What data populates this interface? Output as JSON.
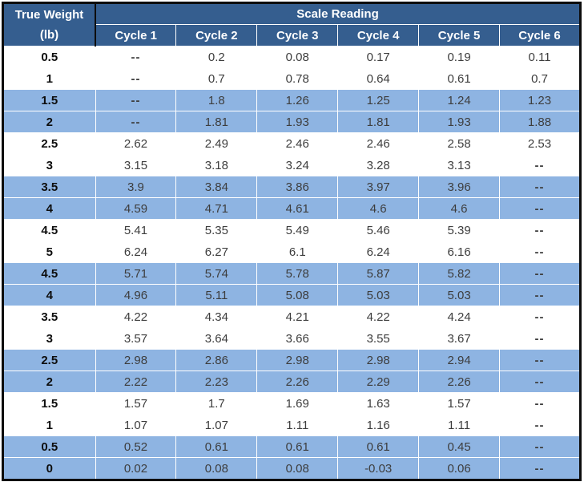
{
  "chart_data": {
    "type": "table",
    "corner_header": {
      "line1": "True Weight",
      "line2": "(lb)"
    },
    "group_header": "Scale Reading",
    "columns": [
      "Cycle 1",
      "Cycle 2",
      "Cycle 3",
      "Cycle 4",
      "Cycle 5",
      "Cycle 6"
    ],
    "missing_marker": "--",
    "rows": [
      {
        "weight": "0.5",
        "shaded": false,
        "values": [
          "--",
          "0.2",
          "0.08",
          "0.17",
          "0.19",
          "0.11"
        ]
      },
      {
        "weight": "1",
        "shaded": false,
        "values": [
          "--",
          "0.7",
          "0.78",
          "0.64",
          "0.61",
          "0.7"
        ]
      },
      {
        "weight": "1.5",
        "shaded": true,
        "values": [
          "--",
          "1.8",
          "1.26",
          "1.25",
          "1.24",
          "1.23"
        ]
      },
      {
        "weight": "2",
        "shaded": true,
        "values": [
          "--",
          "1.81",
          "1.93",
          "1.81",
          "1.93",
          "1.88"
        ]
      },
      {
        "weight": "2.5",
        "shaded": false,
        "values": [
          "2.62",
          "2.49",
          "2.46",
          "2.46",
          "2.58",
          "2.53"
        ]
      },
      {
        "weight": "3",
        "shaded": false,
        "values": [
          "3.15",
          "3.18",
          "3.24",
          "3.28",
          "3.13",
          "--"
        ]
      },
      {
        "weight": "3.5",
        "shaded": true,
        "values": [
          "3.9",
          "3.84",
          "3.86",
          "3.97",
          "3.96",
          "--"
        ]
      },
      {
        "weight": "4",
        "shaded": true,
        "values": [
          "4.59",
          "4.71",
          "4.61",
          "4.6",
          "4.6",
          "--"
        ]
      },
      {
        "weight": "4.5",
        "shaded": false,
        "values": [
          "5.41",
          "5.35",
          "5.49",
          "5.46",
          "5.39",
          "--"
        ]
      },
      {
        "weight": "5",
        "shaded": false,
        "values": [
          "6.24",
          "6.27",
          "6.1",
          "6.24",
          "6.16",
          "--"
        ]
      },
      {
        "weight": "4.5",
        "shaded": true,
        "values": [
          "5.71",
          "5.74",
          "5.78",
          "5.87",
          "5.82",
          "--"
        ]
      },
      {
        "weight": "4",
        "shaded": true,
        "values": [
          "4.96",
          "5.11",
          "5.08",
          "5.03",
          "5.03",
          "--"
        ]
      },
      {
        "weight": "3.5",
        "shaded": false,
        "values": [
          "4.22",
          "4.34",
          "4.21",
          "4.22",
          "4.24",
          "--"
        ]
      },
      {
        "weight": "3",
        "shaded": false,
        "values": [
          "3.57",
          "3.64",
          "3.66",
          "3.55",
          "3.67",
          "--"
        ]
      },
      {
        "weight": "2.5",
        "shaded": true,
        "values": [
          "2.98",
          "2.86",
          "2.98",
          "2.98",
          "2.94",
          "--"
        ]
      },
      {
        "weight": "2",
        "shaded": true,
        "values": [
          "2.22",
          "2.23",
          "2.26",
          "2.29",
          "2.26",
          "--"
        ]
      },
      {
        "weight": "1.5",
        "shaded": false,
        "values": [
          "1.57",
          "1.7",
          "1.69",
          "1.63",
          "1.57",
          "--"
        ]
      },
      {
        "weight": "1",
        "shaded": false,
        "values": [
          "1.07",
          "1.07",
          "1.11",
          "1.16",
          "1.11",
          "--"
        ]
      },
      {
        "weight": "0.5",
        "shaded": true,
        "values": [
          "0.52",
          "0.61",
          "0.61",
          "0.61",
          "0.45",
          "--"
        ]
      },
      {
        "weight": "0",
        "shaded": true,
        "values": [
          "0.02",
          "0.08",
          "0.08",
          "-0.03",
          "0.06",
          "--"
        ]
      }
    ]
  },
  "colors": {
    "header_bg": "#355E8F",
    "header_text": "#FFFFFF",
    "shaded_row_bg": "#8EB4E2",
    "body_text": "#3D3D3D",
    "weight_col_text": "#0D0D0D",
    "outer_border": "#0D0D0D",
    "grid_line": "#FFFFFF"
  }
}
